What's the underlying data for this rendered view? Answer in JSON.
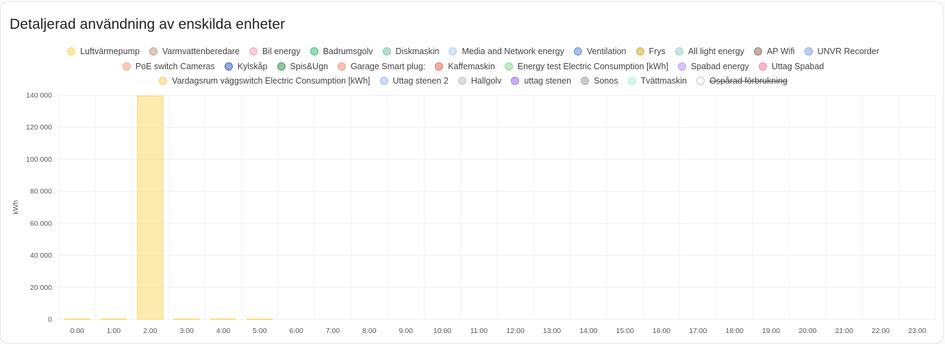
{
  "card": {
    "title": "Detaljerad användning av enskilda enheter"
  },
  "legend": {
    "rows": [
      [
        {
          "label": "Luftvärmepump",
          "color": "#f9d86b"
        },
        {
          "label": "Varmvattenberedare",
          "color": "#c8a48c"
        },
        {
          "label": "Bil energy",
          "color": "#f5a9c8"
        },
        {
          "label": "Badrumsgolv",
          "color": "#4cc38a"
        },
        {
          "label": "Diskmaskin",
          "color": "#7fc8b0"
        },
        {
          "label": "Media and Network energy",
          "color": "#b9d2f2"
        },
        {
          "label": "Ventilation",
          "color": "#6f8fe0"
        },
        {
          "label": "Frys",
          "color": "#e0b040"
        },
        {
          "label": "All light energy",
          "color": "#9ad9c8"
        },
        {
          "label": "AP Wifi",
          "color": "#a07a66"
        },
        {
          "label": "UNVR Recorder",
          "color": "#8fa8f0"
        }
      ],
      [
        {
          "label": "PoE switch Cameras",
          "color": "#f6a898"
        },
        {
          "label": "Kylskåp",
          "color": "#4a6fc4"
        },
        {
          "label": "Spis&Ugn",
          "color": "#3f9c62"
        },
        {
          "label": "Garage Smart plug:",
          "color": "#f59a8c"
        },
        {
          "label": "Kaffemaskin",
          "color": "#e07a6a"
        },
        {
          "label": "Energy test Electric Consumption [kWh]",
          "color": "#90dca0"
        },
        {
          "label": "Spabad energy",
          "color": "#c09cf2"
        },
        {
          "label": "Uttag Spabad",
          "color": "#f28aa8"
        }
      ],
      [
        {
          "label": "Vardagsrum väggswitch Electric Consumption [kWh]",
          "color": "#f9cf7a"
        },
        {
          "label": "Uttag stenen 2",
          "color": "#a9bfe6"
        },
        {
          "label": "Hallgolv",
          "color": "#c4c4c4"
        },
        {
          "label": "uttag stenen",
          "color": "#a87ae6"
        },
        {
          "label": "Sonos",
          "color": "#a8a8a8"
        },
        {
          "label": "Tvättmaskin",
          "color": "#b8f0dc"
        },
        {
          "label": "Ospårad förbrukning",
          "color": "#ffffff",
          "hidden": true
        }
      ]
    ]
  },
  "chart_data": {
    "type": "bar",
    "stacked": true,
    "ylabel": "kWh",
    "ylim": [
      0,
      140000
    ],
    "yticks": [
      0,
      20000,
      40000,
      60000,
      80000,
      100000,
      120000,
      140000
    ],
    "ytick_labels": [
      "0",
      "20 000",
      "40 000",
      "60 000",
      "80 000",
      "100 000",
      "120 000",
      "140 000"
    ],
    "categories": [
      "0:00",
      "1:00",
      "2:00",
      "3:00",
      "4:00",
      "5:00",
      "6:00",
      "7:00",
      "8:00",
      "9:00",
      "10:00",
      "11:00",
      "12:00",
      "13:00",
      "14:00",
      "15:00",
      "16:00",
      "17:00",
      "18:00",
      "19:00",
      "20:00",
      "21:00",
      "22:00",
      "23:00"
    ],
    "grid": true,
    "legend_position": "top",
    "series": [
      {
        "name": "Luftvärmepump",
        "color": "#f9d86b",
        "values": [
          300,
          300,
          139500,
          300,
          300,
          200,
          0,
          0,
          0,
          0,
          0,
          0,
          0,
          0,
          0,
          0,
          0,
          0,
          0,
          0,
          0,
          0,
          0,
          0
        ]
      }
    ]
  }
}
